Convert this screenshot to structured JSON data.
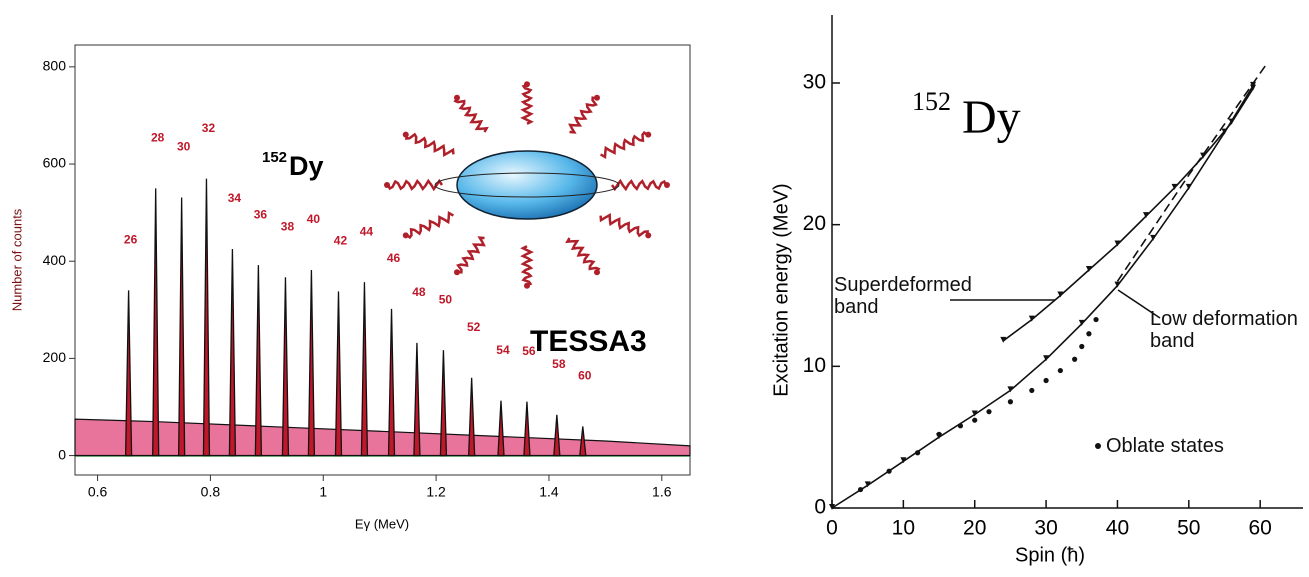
{
  "chart_data": [
    {
      "type": "area",
      "xlabel": "Eγ (MeV)",
      "ylabel": "Number of counts",
      "annotations": [
        {
          "sup": "152",
          "text": "Dy"
        },
        {
          "text": "TESSA3"
        }
      ],
      "xlim": [
        0.56,
        1.65
      ],
      "ylim": [
        -40,
        845
      ],
      "xticks": [
        0.6,
        0.8,
        1.0,
        1.2,
        1.4,
        1.6
      ],
      "yticks": [
        0,
        200,
        400,
        600,
        800
      ],
      "background": {
        "x": [
          0.56,
          0.7,
          0.9,
          1.1,
          1.3,
          1.5,
          1.65
        ],
        "values": [
          75,
          70,
          60,
          50,
          40,
          30,
          20
        ],
        "color": "#e0457b"
      },
      "peaks": {
        "x": [
          0.655,
          0.703,
          0.749,
          0.793,
          0.839,
          0.885,
          0.933,
          0.979,
          1.027,
          1.073,
          1.121,
          1.166,
          1.213,
          1.263,
          1.315,
          1.361,
          1.414,
          1.46
        ],
        "values": [
          340,
          550,
          531,
          570,
          425,
          392,
          367,
          382,
          338,
          357,
          302,
          232,
          217,
          160,
          113,
          111,
          84,
          60
        ],
        "spins": [
          26,
          28,
          30,
          32,
          34,
          36,
          38,
          40,
          42,
          44,
          46,
          48,
          50,
          52,
          54,
          56,
          58,
          60
        ],
        "color": "#c0182a"
      }
    },
    {
      "type": "line",
      "xlabel": "Spin (ħ)",
      "ylabel": "Excitation energy (MeV)",
      "annotations": [
        {
          "sup": "152",
          "text": "Dy"
        }
      ],
      "xlim": [
        0,
        66
      ],
      "ylim": [
        0,
        34.8
      ],
      "xticks": [
        0,
        10,
        20,
        30,
        40,
        50,
        60
      ],
      "yticks": [
        0,
        10,
        20,
        30
      ],
      "series": [
        {
          "name": "Superdeformed band",
          "style": "solid",
          "color": "#111111",
          "x": [
            24,
            28,
            32,
            36,
            40,
            44,
            48,
            52,
            56,
            59
          ],
          "values": [
            11.8,
            13.3,
            15.0,
            16.8,
            18.6,
            20.6,
            22.6,
            24.8,
            27.2,
            29.6
          ]
        },
        {
          "name": "Low deformation band",
          "style": "solid",
          "color": "#111111",
          "x": [
            0,
            5,
            10,
            15,
            20,
            25,
            30,
            35,
            40,
            45,
            50,
            55,
            59
          ],
          "values": [
            0,
            1.6,
            3.3,
            5.0,
            6.6,
            8.3,
            10.5,
            13.0,
            15.7,
            19.0,
            22.6,
            26.5,
            29.8
          ]
        },
        {
          "name": "Oblate states",
          "style": "dots",
          "color": "#111111",
          "x": [
            4,
            8,
            12,
            15,
            18,
            20,
            22,
            25,
            28,
            30,
            32,
            34,
            35,
            36,
            37
          ],
          "values": [
            1.3,
            2.6,
            3.9,
            5.2,
            5.8,
            6.2,
            6.8,
            7.5,
            8.3,
            9.0,
            9.7,
            10.5,
            11.4,
            12.3,
            13.3
          ]
        },
        {
          "style": "dashed",
          "color": "#111111",
          "x": [
            40,
            50,
            60.7
          ],
          "values": [
            16,
            23.5,
            31.2
          ]
        }
      ]
    }
  ]
}
